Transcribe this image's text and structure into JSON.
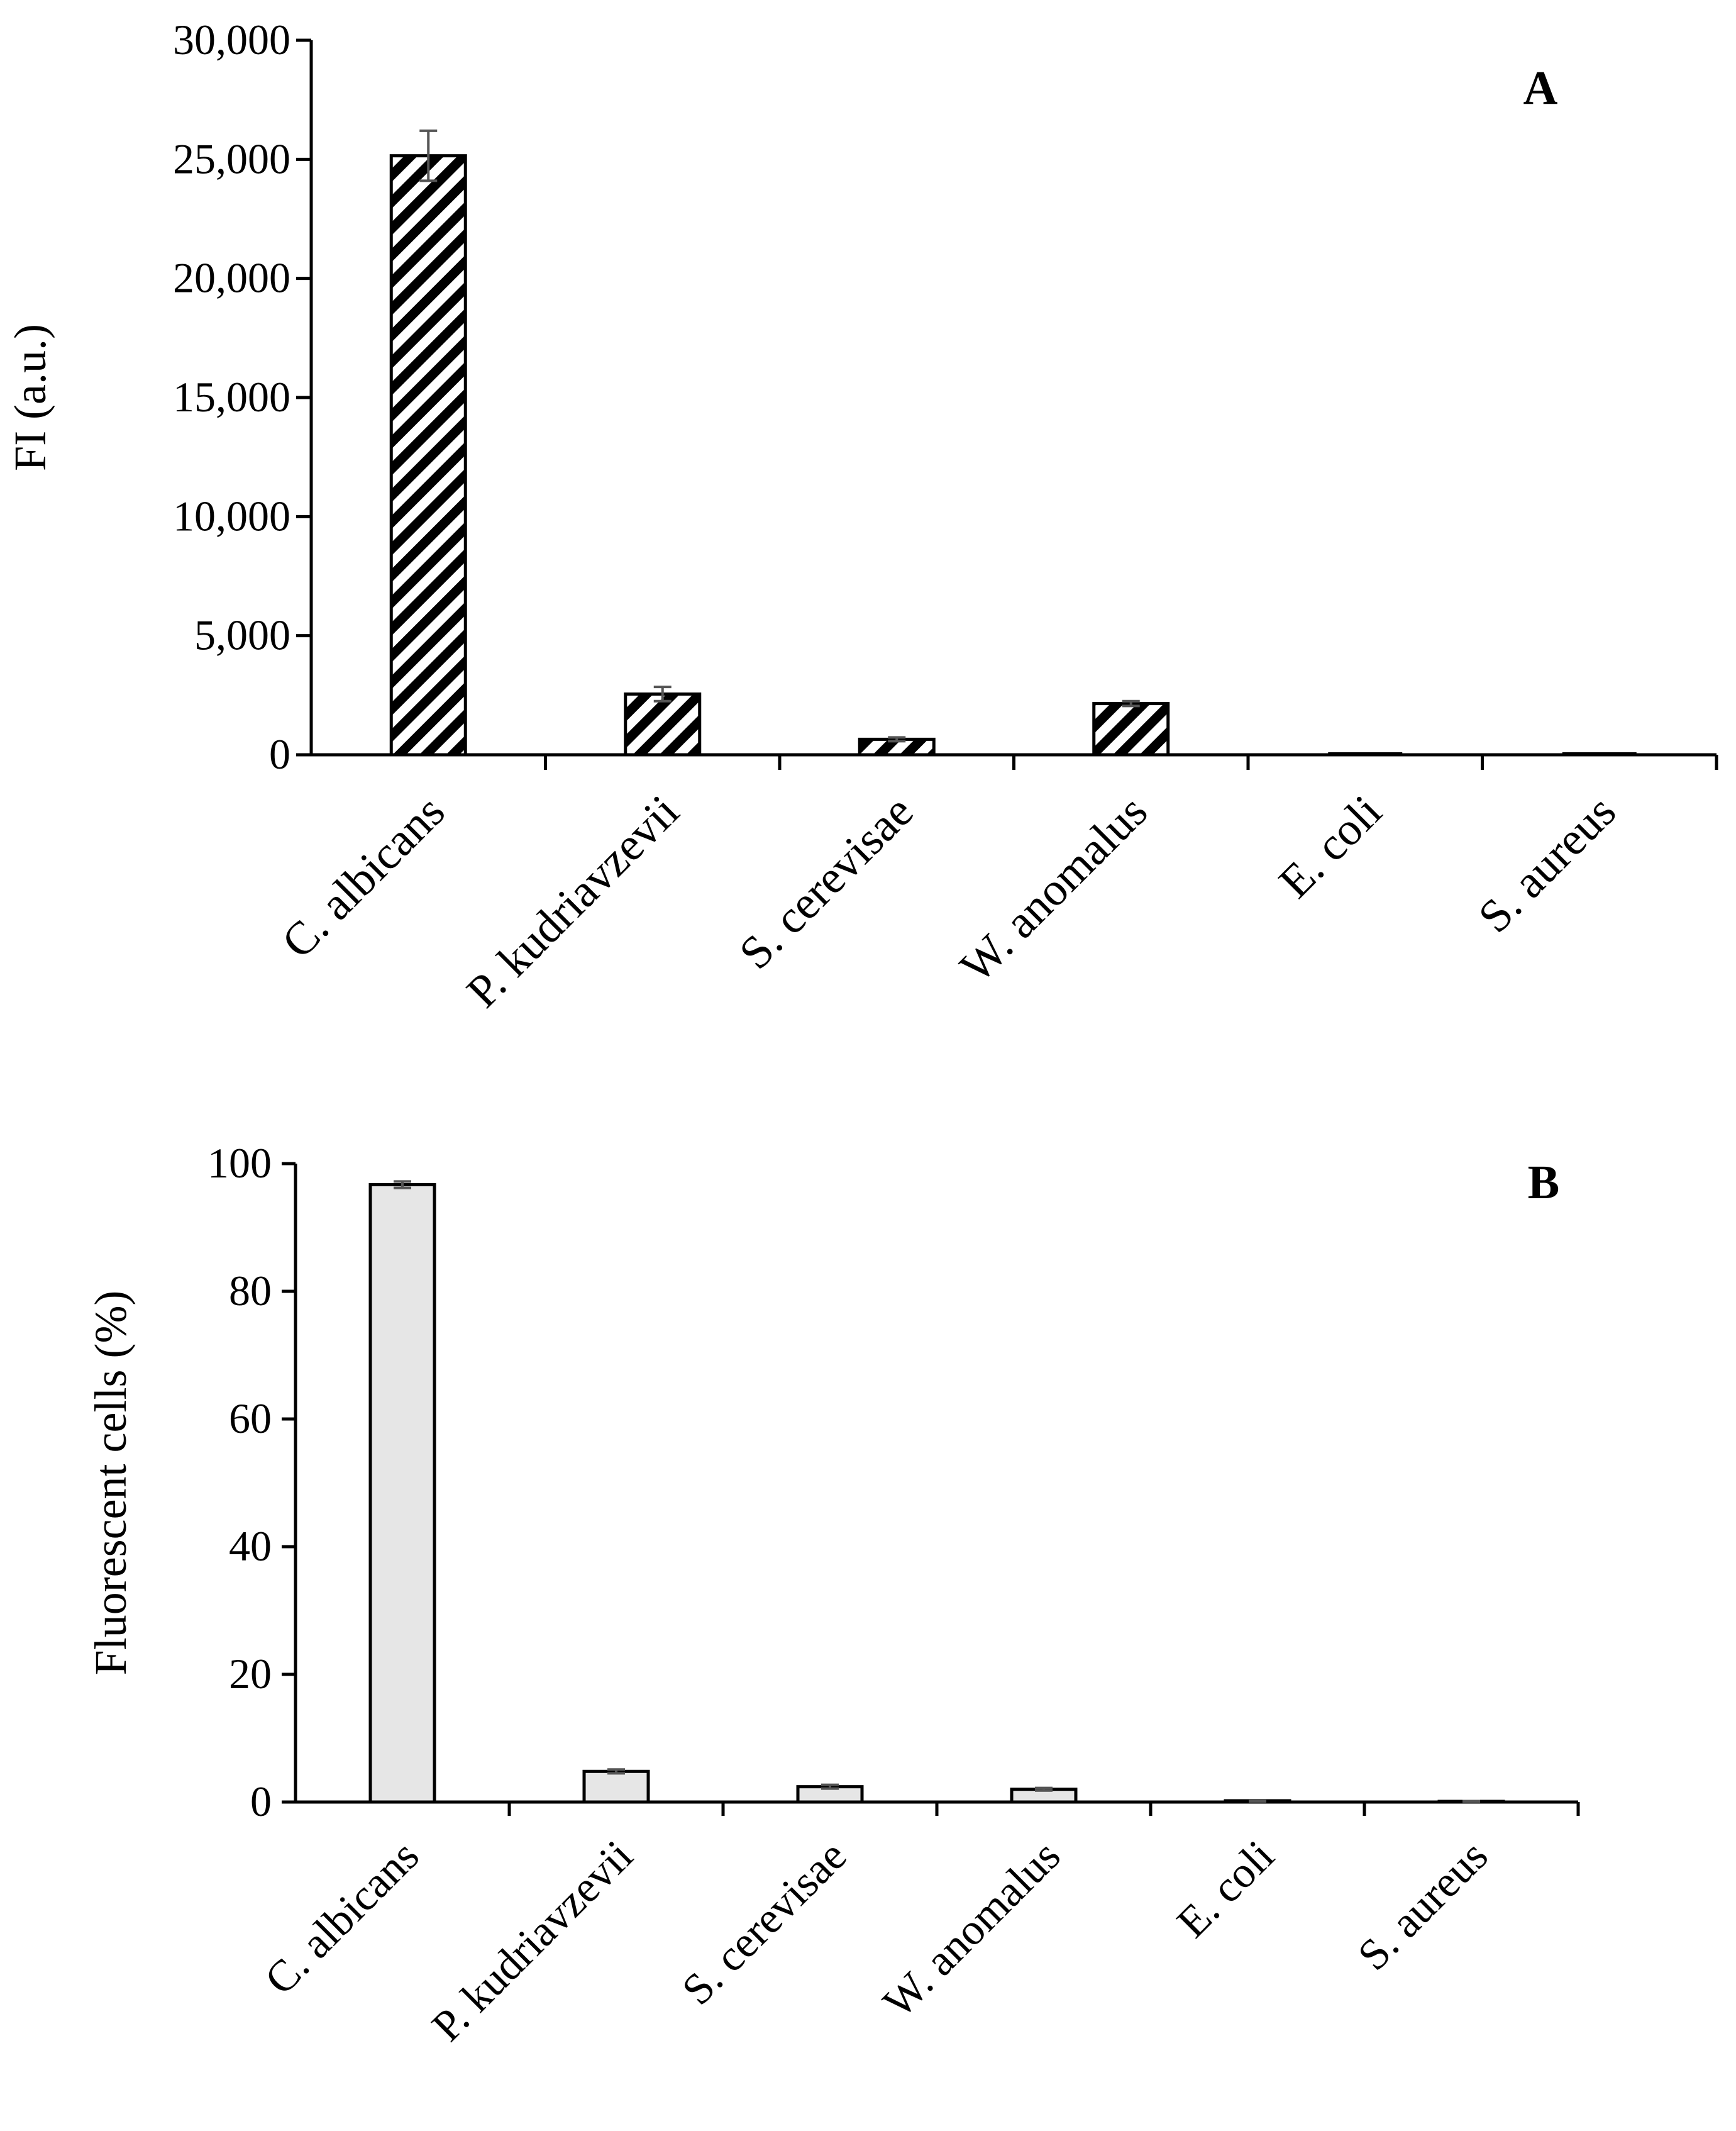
{
  "chart_data": [
    {
      "type": "bar",
      "panel": "A",
      "categories": [
        "C. albicans",
        "P. kudriavzevii",
        "S. cerevisae",
        "W. anomalus",
        "E. coli",
        "S. aureus"
      ],
      "values": [
        25150,
        2550,
        650,
        2150,
        0,
        0
      ],
      "errors": [
        1050,
        300,
        80,
        100,
        0,
        0
      ],
      "ylabel": "FI (a.u.)",
      "xlabel": "",
      "ylim": [
        0,
        30000
      ],
      "yticks": [
        0,
        5000,
        10000,
        15000,
        20000,
        25000,
        30000
      ],
      "ytick_labels": [
        "0",
        "5,000",
        "10,000",
        "15,000",
        "20,000",
        "25,000",
        "30,000"
      ],
      "fill": "diagonal-hatch",
      "colors": {
        "bar_fill": "#ffffff",
        "hatch": "#000000",
        "error": "#555555"
      },
      "grid": false
    },
    {
      "type": "bar",
      "panel": "B",
      "categories": [
        "C. albicans",
        "P. kudriavzevii",
        "S. cerevisae",
        "W. anomalus",
        "E. coli",
        "S. aureus"
      ],
      "values": [
        96.7,
        4.8,
        2.4,
        2.0,
        0.2,
        0.1
      ],
      "errors": [
        0.5,
        0.3,
        0.3,
        0.2,
        0.1,
        0.05
      ],
      "ylabel": "Fluorescent cells (%)",
      "xlabel": "",
      "ylim": [
        0,
        100
      ],
      "yticks": [
        0,
        20,
        40,
        60,
        80,
        100
      ],
      "ytick_labels": [
        "0",
        "20",
        "40",
        "60",
        "80",
        "100"
      ],
      "fill": "solid",
      "colors": {
        "bar_fill": "#e6e6e6",
        "error": "#555555"
      },
      "grid": false
    }
  ]
}
